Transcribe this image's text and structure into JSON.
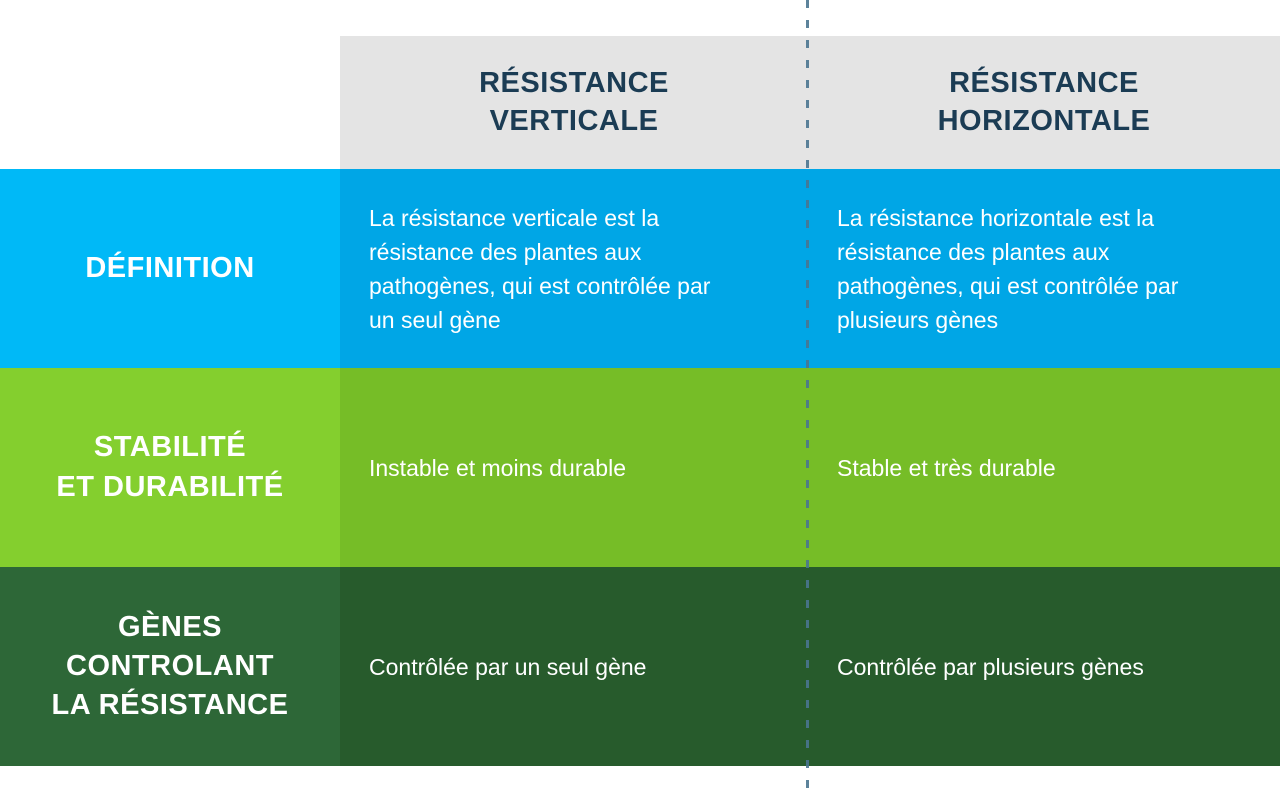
{
  "table": {
    "header": {
      "columns": [
        {
          "label": "RÉSISTANCE\nVERTICALE"
        },
        {
          "label": "RÉSISTANCE\nHORIZONTALE"
        }
      ]
    },
    "rows": [
      {
        "label": "DÉFINITION",
        "cells": [
          "La résistance verticale est la\nrésistance des plantes aux\npathogènes, qui est contrôlée par\nun seul gène",
          "La résistance horizontale est la\nrésistance des plantes aux\npathogènes, qui est contrôlée par\nplusieurs gènes"
        ],
        "label_bg": "#00B9F7",
        "cell_bg": "#00A6E6"
      },
      {
        "label": "STABILITÉ\nET DURABILITÉ",
        "cells": [
          "Instable et moins durable",
          "Stable et très durable"
        ],
        "label_bg": "#84CF2E",
        "cell_bg": "#76BD27"
      },
      {
        "label": "GÈNES\nCONTROLANT\nLA RÉSISTANCE",
        "cells": [
          "Contrôlée par un seul gène",
          "Contrôlée par plusieurs gènes"
        ],
        "label_bg": "#2D6737",
        "cell_bg": "#275B2C"
      }
    ]
  },
  "colors": {
    "header_bg": "#E4E4E4",
    "header_text": "#1B3C54",
    "body_text": "#FFFFFF",
    "separator": "#4A7590",
    "page_bg": "#FFFFFF"
  }
}
